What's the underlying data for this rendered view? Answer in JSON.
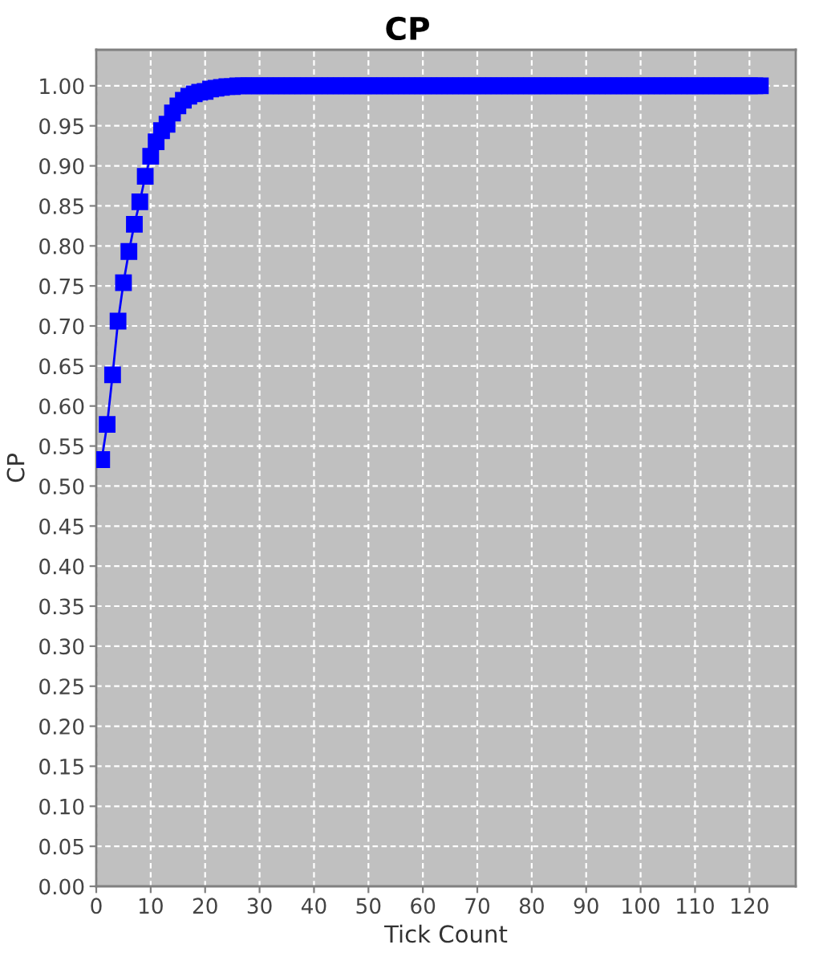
{
  "chart_data": {
    "type": "line",
    "title": "CP",
    "xlabel": "Tick Count",
    "ylabel": "CP",
    "x": [
      1,
      2,
      3,
      4,
      5,
      6,
      7,
      8,
      9,
      10,
      11,
      12,
      13,
      14,
      15,
      16,
      17,
      18,
      19,
      20,
      21,
      22,
      23,
      24,
      25,
      26,
      27,
      28,
      29,
      30,
      31,
      32,
      33,
      34,
      35,
      36,
      37,
      38,
      39,
      40,
      41,
      42,
      43,
      44,
      45,
      46,
      47,
      48,
      49,
      50,
      51,
      52,
      53,
      54,
      55,
      56,
      57,
      58,
      59,
      60,
      61,
      62,
      63,
      64,
      65,
      66,
      67,
      68,
      69,
      70,
      71,
      72,
      73,
      74,
      75,
      76,
      77,
      78,
      79,
      80,
      81,
      82,
      83,
      84,
      85,
      86,
      87,
      88,
      89,
      90,
      91,
      92,
      93,
      94,
      95,
      96,
      97,
      98,
      99,
      100,
      101,
      102,
      103,
      104,
      105,
      106,
      107,
      108,
      109,
      110,
      111,
      112,
      113,
      114,
      115,
      116,
      117,
      118,
      119,
      120,
      121,
      122
    ],
    "series": [
      {
        "color": "#0000ff",
        "values": [
          0.533,
          0.577,
          0.639,
          0.706,
          0.754,
          0.793,
          0.827,
          0.855,
          0.887,
          0.912,
          0.93,
          0.944,
          0.952,
          0.966,
          0.975,
          0.982,
          0.987,
          0.99,
          0.992,
          0.993,
          0.996,
          0.997,
          0.998,
          0.999,
          0.999,
          1.0,
          1.0,
          1.0,
          1.0,
          1.0,
          1.0,
          1.0,
          1.0,
          1.0,
          1.0,
          1.0,
          1.0,
          1.0,
          1.0,
          1.0,
          1.0,
          1.0,
          1.0,
          1.0,
          1.0,
          1.0,
          1.0,
          1.0,
          1.0,
          1.0,
          1.0,
          1.0,
          1.0,
          1.0,
          1.0,
          1.0,
          1.0,
          1.0,
          1.0,
          1.0,
          1.0,
          1.0,
          1.0,
          1.0,
          1.0,
          1.0,
          1.0,
          1.0,
          1.0,
          1.0,
          1.0,
          1.0,
          1.0,
          1.0,
          1.0,
          1.0,
          1.0,
          1.0,
          1.0,
          1.0,
          1.0,
          1.0,
          1.0,
          1.0,
          1.0,
          1.0,
          1.0,
          1.0,
          1.0,
          1.0,
          1.0,
          1.0,
          1.0,
          1.0,
          1.0,
          1.0,
          1.0,
          1.0,
          1.0,
          1.0,
          1.0,
          1.0,
          1.0,
          1.0,
          1.0,
          1.0,
          1.0,
          1.0,
          1.0,
          1.0,
          1.0,
          1.0,
          1.0,
          1.0,
          1.0,
          1.0,
          1.0,
          1.0,
          1.0,
          1.0,
          1.0,
          1.0
        ]
      }
    ],
    "xlim": [
      0,
      128.5
    ],
    "xticks": [
      0,
      10,
      20,
      30,
      40,
      50,
      60,
      70,
      80,
      90,
      100,
      110,
      120
    ],
    "ylim": [
      0,
      1.045
    ],
    "yticks": [
      {
        "value": 0,
        "label": "0.00"
      },
      {
        "value": 0.05,
        "label": "0.05"
      },
      {
        "value": 0.1,
        "label": "0.10"
      },
      {
        "value": 0.15,
        "label": "0.15"
      },
      {
        "value": 0.2,
        "label": "0.20"
      },
      {
        "value": 0.25,
        "label": "0.25"
      },
      {
        "value": 0.3,
        "label": "0.30"
      },
      {
        "value": 0.35,
        "label": "0.35"
      },
      {
        "value": 0.4,
        "label": "0.40"
      },
      {
        "value": 0.45,
        "label": "0.45"
      },
      {
        "value": 0.5,
        "label": "0.50"
      },
      {
        "value": 0.55,
        "label": "0.55"
      },
      {
        "value": 0.6,
        "label": "0.60"
      },
      {
        "value": 0.65,
        "label": "0.65"
      },
      {
        "value": 0.7,
        "label": "0.70"
      },
      {
        "value": 0.75,
        "label": "0.75"
      },
      {
        "value": 0.8,
        "label": "0.80"
      },
      {
        "value": 0.85,
        "label": "0.85"
      },
      {
        "value": 0.9,
        "label": "0.90"
      },
      {
        "value": 0.95,
        "label": "0.95"
      },
      {
        "value": 1.0,
        "label": "1.00"
      }
    ],
    "grid": true,
    "marker": "square",
    "line_style": "solid"
  }
}
